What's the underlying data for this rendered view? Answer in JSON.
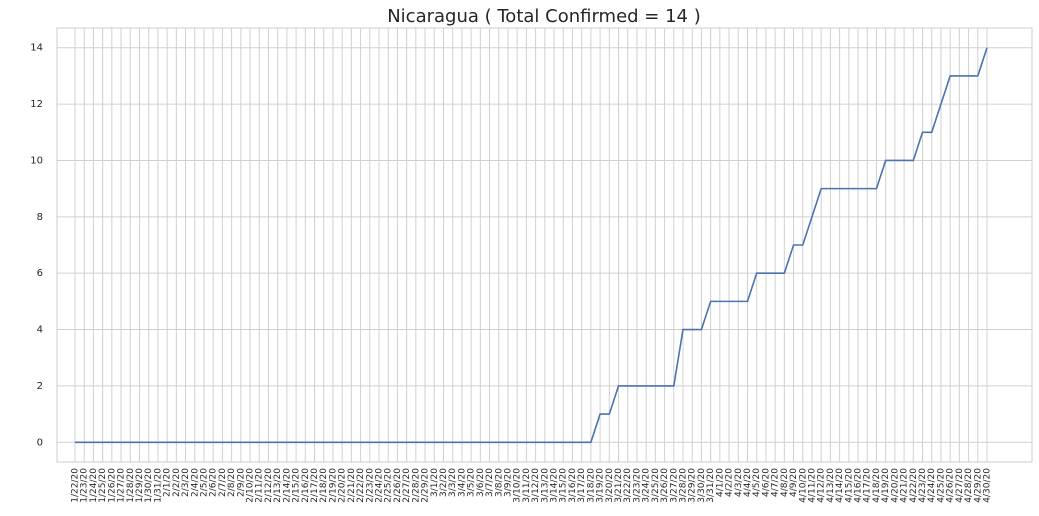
{
  "chart_data": {
    "type": "line",
    "title": "Nicaragua ( Total Confirmed = 14 )",
    "categories": [
      "1/22/20",
      "1/23/20",
      "1/24/20",
      "1/25/20",
      "1/26/20",
      "1/27/20",
      "1/28/20",
      "1/29/20",
      "1/30/20",
      "1/31/20",
      "2/1/20",
      "2/2/20",
      "2/3/20",
      "2/4/20",
      "2/5/20",
      "2/6/20",
      "2/7/20",
      "2/8/20",
      "2/9/20",
      "2/10/20",
      "2/11/20",
      "2/12/20",
      "2/13/20",
      "2/14/20",
      "2/15/20",
      "2/16/20",
      "2/17/20",
      "2/18/20",
      "2/19/20",
      "2/20/20",
      "2/21/20",
      "2/22/20",
      "2/23/20",
      "2/24/20",
      "2/25/20",
      "2/26/20",
      "2/27/20",
      "2/28/20",
      "2/29/20",
      "3/1/20",
      "3/2/20",
      "3/3/20",
      "3/4/20",
      "3/5/20",
      "3/6/20",
      "3/7/20",
      "3/8/20",
      "3/9/20",
      "3/10/20",
      "3/11/20",
      "3/12/20",
      "3/13/20",
      "3/14/20",
      "3/15/20",
      "3/16/20",
      "3/17/20",
      "3/18/20",
      "3/19/20",
      "3/20/20",
      "3/21/20",
      "3/22/20",
      "3/23/20",
      "3/24/20",
      "3/25/20",
      "3/26/20",
      "3/27/20",
      "3/28/20",
      "3/29/20",
      "3/30/20",
      "3/31/20",
      "4/1/20",
      "4/2/20",
      "4/3/20",
      "4/4/20",
      "4/5/20",
      "4/6/20",
      "4/7/20",
      "4/8/20",
      "4/9/20",
      "4/10/20",
      "4/11/20",
      "4/12/20",
      "4/13/20",
      "4/14/20",
      "4/15/20",
      "4/16/20",
      "4/17/20",
      "4/18/20",
      "4/19/20",
      "4/20/20",
      "4/21/20",
      "4/22/20",
      "4/23/20",
      "4/24/20",
      "4/25/20",
      "4/26/20",
      "4/27/20",
      "4/28/20",
      "4/29/20",
      "4/30/20"
    ],
    "values": [
      0,
      0,
      0,
      0,
      0,
      0,
      0,
      0,
      0,
      0,
      0,
      0,
      0,
      0,
      0,
      0,
      0,
      0,
      0,
      0,
      0,
      0,
      0,
      0,
      0,
      0,
      0,
      0,
      0,
      0,
      0,
      0,
      0,
      0,
      0,
      0,
      0,
      0,
      0,
      0,
      0,
      0,
      0,
      0,
      0,
      0,
      0,
      0,
      0,
      0,
      0,
      0,
      0,
      0,
      0,
      0,
      0,
      1,
      1,
      2,
      2,
      2,
      2,
      2,
      2,
      2,
      4,
      4,
      4,
      5,
      5,
      5,
      5,
      5,
      6,
      6,
      6,
      6,
      7,
      7,
      8,
      9,
      9,
      9,
      9,
      9,
      9,
      9,
      10,
      10,
      10,
      10,
      11,
      11,
      12,
      13,
      13,
      13,
      13,
      14
    ],
    "color": "#4c72b0",
    "ylim": [
      -0.7,
      14.7
    ],
    "yticks": [
      0,
      2,
      4,
      6,
      8,
      10,
      12,
      14
    ],
    "grid": true
  }
}
